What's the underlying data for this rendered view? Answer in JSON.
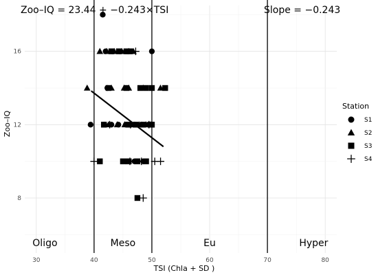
{
  "chart_data": {
    "type": "scatter",
    "title": "",
    "xlabel": "TSI (Chla + SD  )",
    "ylabel": "Zoo–IQ",
    "xlim": [
      28,
      82
    ],
    "ylim": [
      5,
      18.5
    ],
    "x_ticks": [
      30,
      40,
      50,
      60,
      70,
      80
    ],
    "y_ticks": [
      8,
      12,
      16
    ],
    "grid": true,
    "annotations": {
      "equation": "Zoo–IQ = 23.44 + −0.243×TSI",
      "slope": "Slope = −0.243"
    },
    "zones": [
      {
        "label": "Oligo",
        "x": 31.5
      },
      {
        "label": "Meso",
        "x": 45
      },
      {
        "label": "Eu",
        "x": 60
      },
      {
        "label": "Hyper",
        "x": 78
      }
    ],
    "vlines": [
      40,
      50,
      70
    ],
    "regression": {
      "intercept": 23.44,
      "slope": -0.243,
      "x_range": [
        39.5,
        52
      ]
    },
    "legend": {
      "title": "Station",
      "position": "right"
    },
    "series": [
      {
        "name": "S1",
        "shape": "circle",
        "points": [
          [
            41.5,
            18
          ],
          [
            50,
            16
          ],
          [
            42,
            16
          ],
          [
            43.2,
            16
          ],
          [
            44.5,
            16
          ],
          [
            45.5,
            16
          ],
          [
            42.3,
            14
          ],
          [
            39.4,
            12
          ],
          [
            41.8,
            12
          ],
          [
            43,
            12
          ],
          [
            44.2,
            12
          ],
          [
            45.5,
            12
          ],
          [
            47,
            12
          ],
          [
            48.2,
            12
          ],
          [
            49.4,
            12
          ],
          [
            45.5,
            10
          ],
          [
            47,
            10
          ],
          [
            48.5,
            10
          ]
        ]
      },
      {
        "name": "S2",
        "shape": "triangle",
        "points": [
          [
            41,
            16
          ],
          [
            42.2,
            16
          ],
          [
            43.5,
            16
          ],
          [
            44.8,
            16
          ],
          [
            46,
            16
          ],
          [
            46.8,
            16
          ],
          [
            38.8,
            14
          ],
          [
            43,
            14
          ],
          [
            45.2,
            14
          ],
          [
            46,
            14
          ],
          [
            48.5,
            14
          ],
          [
            51.5,
            14
          ],
          [
            42.5,
            12
          ],
          [
            44,
            12
          ],
          [
            45.3,
            12
          ],
          [
            46.5,
            12
          ],
          [
            47.8,
            12
          ],
          [
            49,
            12
          ],
          [
            49.8,
            12
          ]
        ]
      },
      {
        "name": "S3",
        "shape": "square",
        "points": [
          [
            43,
            16
          ],
          [
            44.3,
            16
          ],
          [
            45.6,
            16
          ],
          [
            46.2,
            16
          ],
          [
            42.5,
            14
          ],
          [
            45.6,
            14
          ],
          [
            48,
            14
          ],
          [
            49,
            14
          ],
          [
            50,
            14
          ],
          [
            52.3,
            14
          ],
          [
            41.7,
            12
          ],
          [
            46,
            12
          ],
          [
            47.2,
            12
          ],
          [
            48.5,
            12
          ],
          [
            49.8,
            12
          ],
          [
            50,
            12
          ],
          [
            41,
            10
          ],
          [
            45,
            10
          ],
          [
            46,
            10
          ],
          [
            47.5,
            10
          ],
          [
            49,
            10
          ],
          [
            47.5,
            8
          ]
        ]
      },
      {
        "name": "S4",
        "shape": "cross",
        "points": [
          [
            47.2,
            16
          ],
          [
            42.7,
            12
          ],
          [
            46.3,
            12
          ],
          [
            49.5,
            12
          ],
          [
            40,
            10
          ],
          [
            46.2,
            10
          ],
          [
            48.2,
            10
          ],
          [
            50.5,
            10
          ],
          [
            51.5,
            10
          ],
          [
            48.5,
            8
          ]
        ]
      }
    ]
  }
}
